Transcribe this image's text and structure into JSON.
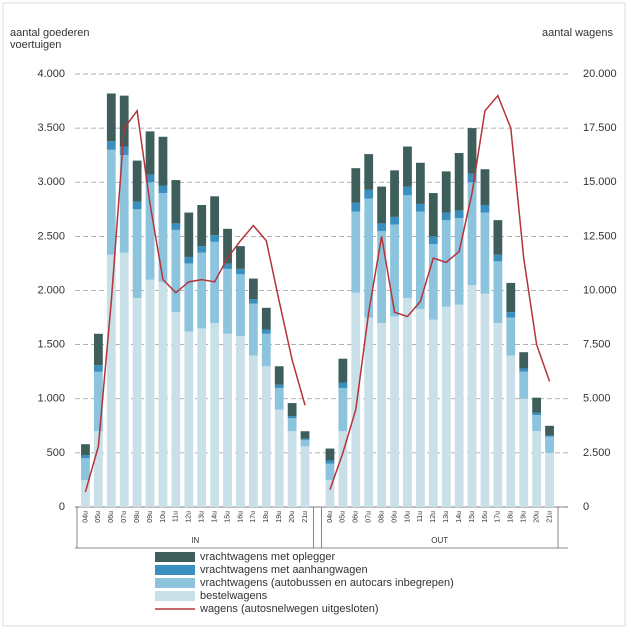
{
  "chart_data": {
    "type": "stacked-bar-line",
    "ylabel": "aantal goederen voertuigen",
    "y2label": "aantal wagens",
    "group_labels": [
      "IN",
      "OUT"
    ],
    "categories": [
      "04u",
      "05u",
      "06u",
      "07u",
      "08u",
      "09u",
      "10u",
      "11u",
      "12u",
      "13u",
      "14u",
      "15u",
      "16u",
      "17u",
      "18u",
      "19u",
      "20u",
      "21u",
      "04u",
      "05u",
      "06u",
      "07u",
      "08u",
      "09u",
      "10u",
      "11u",
      "12u",
      "13u",
      "14u",
      "15u",
      "16u",
      "17u",
      "18u",
      "19u",
      "20u",
      "21u"
    ],
    "ylim": [
      0,
      4000
    ],
    "yticks": [
      0,
      500,
      {
        "value": 1000,
        "label": "1.000"
      },
      {
        "value": 1500,
        "label": "1.500"
      },
      {
        "value": 2000,
        "label": "2.000"
      },
      {
        "value": 2500,
        "label": "2.500"
      },
      {
        "value": 3000,
        "label": "3.000"
      },
      {
        "value": 3500,
        "label": "3.500"
      },
      {
        "value": 4000,
        "label": "4.000"
      }
    ],
    "y2lim": [
      0,
      20000
    ],
    "y2ticks": [
      0,
      {
        "value": 2500,
        "label": "2.500"
      },
      {
        "value": 5000,
        "label": "5.000"
      },
      {
        "value": 7500,
        "label": "7.500"
      },
      {
        "value": 10000,
        "label": "10.000"
      },
      {
        "value": 12500,
        "label": "12.500"
      },
      {
        "value": 15000,
        "label": "15.000"
      },
      {
        "value": 17500,
        "label": "17.500"
      },
      {
        "value": 20000,
        "label": "20.000"
      }
    ],
    "grid": true,
    "series": [
      {
        "name": "bestelwagens",
        "color": "#c9e0e8",
        "values": [
          250,
          700,
          2330,
          2350,
          1930,
          2100,
          2080,
          1800,
          1620,
          1650,
          1700,
          1600,
          1580,
          1400,
          1300,
          900,
          700,
          560,
          250,
          700,
          1980,
          1750,
          1700,
          1760,
          1930,
          1830,
          1730,
          1850,
          1870,
          2050,
          1970,
          1700,
          1400,
          1000,
          700,
          500
        ]
      },
      {
        "name": "vrachtwagens (autobussen en autocars inbegrepen)",
        "color": "#8cc3dd",
        "values": [
          200,
          550,
          970,
          900,
          820,
          900,
          820,
          760,
          630,
          700,
          750,
          600,
          570,
          480,
          300,
          200,
          120,
          60,
          150,
          400,
          750,
          1100,
          850,
          850,
          950,
          900,
          700,
          800,
          800,
          950,
          750,
          570,
          350,
          250,
          150,
          150
        ]
      },
      {
        "name": "vrachtwagens met aanhangwagen",
        "color": "#3a8fbf",
        "values": [
          30,
          60,
          80,
          80,
          70,
          70,
          70,
          60,
          60,
          60,
          60,
          50,
          50,
          40,
          40,
          30,
          20,
          10,
          30,
          50,
          80,
          80,
          70,
          70,
          80,
          70,
          70,
          70,
          70,
          80,
          70,
          60,
          50,
          30,
          20,
          10
        ]
      },
      {
        "name": "vrachtwagens met oplegger",
        "color": "#3d5e5a",
        "values": [
          100,
          290,
          440,
          470,
          380,
          400,
          450,
          400,
          410,
          380,
          360,
          320,
          210,
          190,
          200,
          170,
          120,
          70,
          110,
          220,
          320,
          330,
          340,
          430,
          370,
          380,
          400,
          380,
          530,
          420,
          330,
          320,
          270,
          150,
          140,
          90
        ]
      },
      {
        "name": "wagens (autosnelwegen uitgesloten)",
        "color": "#b5333a",
        "axis": "y2",
        "kind": "line",
        "values": [
          700,
          2800,
          9500,
          17500,
          18300,
          14000,
          10500,
          9900,
          10400,
          10500,
          10400,
          11500,
          12300,
          13000,
          12300,
          9500,
          6800,
          4700,
          800,
          2500,
          4500,
          9000,
          12500,
          9000,
          8800,
          9500,
          11500,
          11300,
          11800,
          14500,
          18300,
          19000,
          17500,
          11500,
          7500,
          5800
        ]
      }
    ],
    "legend_order": [
      3,
      2,
      1,
      0,
      4
    ]
  }
}
